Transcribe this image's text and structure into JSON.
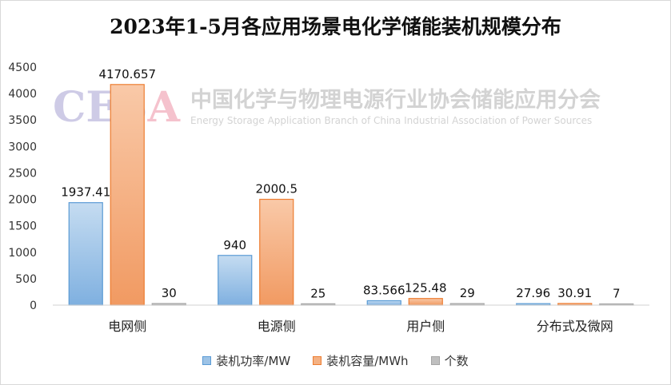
{
  "chart_data": {
    "type": "bar",
    "title": "2023年1-5月各应用场景电化学储能装机规模分布",
    "categories": [
      "电网侧",
      "电源侧",
      "用户侧",
      "分布式及微网"
    ],
    "series": [
      {
        "name": "装机功率/MW",
        "values": [
          1937.41,
          940,
          83.566,
          27.96
        ],
        "labels": [
          "1937.41",
          "940",
          "83.566",
          "27.96"
        ]
      },
      {
        "name": "装机容量/MWh",
        "values": [
          4170.657,
          2000.5,
          125.48,
          30.91
        ],
        "labels": [
          "4170.657",
          "2000.5",
          "125.48",
          "30.91"
        ]
      },
      {
        "name": "个数",
        "values": [
          30,
          25,
          29,
          7
        ],
        "labels": [
          "30",
          "25",
          "29",
          "7"
        ]
      }
    ],
    "ylim": [
      0,
      4500
    ],
    "yticks": [
      "0",
      "500",
      "1000",
      "1500",
      "2000",
      "2500",
      "3000",
      "3500",
      "4000",
      "4500"
    ],
    "grid": false,
    "legend_position": "bottom"
  },
  "colors": {
    "series": [
      "#9dc3e6",
      "#f4b183",
      "#bfbfbf"
    ],
    "series_border": [
      "#5b9bd5",
      "#ed7d31",
      "#a5a5a5"
    ]
  },
  "watermark": {
    "logo": "CESA",
    "cn": "中国化学与物理电源行业协会储能应用分会",
    "en": "Energy Storage Application Branch of China Industrial Association of Power Sources"
  }
}
